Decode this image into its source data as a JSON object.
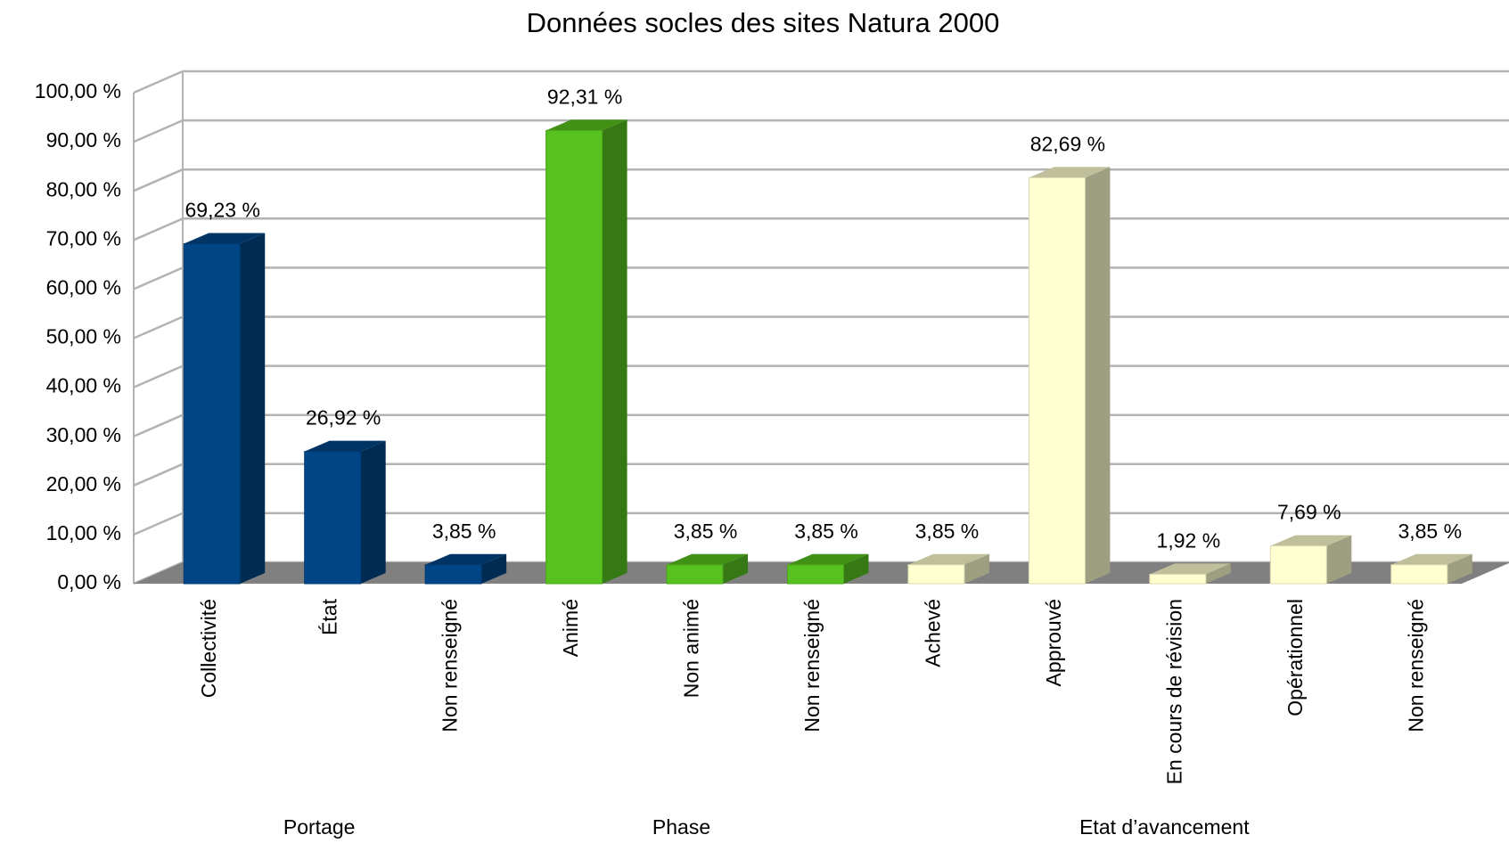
{
  "chart_data": {
    "type": "bar3d",
    "title": "Données socles des sites Natura 2000",
    "ylim": [
      0,
      100
    ],
    "yticks": [
      {
        "value": 0,
        "label": "0,00 %"
      },
      {
        "value": 10,
        "label": "10,00 %"
      },
      {
        "value": 20,
        "label": "20,00 %"
      },
      {
        "value": 30,
        "label": "30,00 %"
      },
      {
        "value": 40,
        "label": "40,00 %"
      },
      {
        "value": 50,
        "label": "50,00 %"
      },
      {
        "value": 60,
        "label": "60,00 %"
      },
      {
        "value": 70,
        "label": "70,00 %"
      },
      {
        "value": 80,
        "label": "80,00 %"
      },
      {
        "value": 90,
        "label": "90,00 %"
      },
      {
        "value": 100,
        "label": "100,00 %"
      }
    ],
    "grid": true,
    "groups": [
      {
        "label": "Portage",
        "color": "#004586",
        "categories": [
          "Collectivité",
          "État",
          "Non renseigné"
        ],
        "values": [
          69.23,
          26.92,
          3.85
        ],
        "value_labels": [
          "69,23 %",
          "26,92 %",
          "3,85 %"
        ]
      },
      {
        "label": "Phase",
        "color": "#57c11f",
        "categories": [
          "Animé",
          "Non animé",
          "Non renseigné"
        ],
        "values": [
          92.31,
          3.85,
          3.85
        ],
        "value_labels": [
          "92,31 %",
          "3,85 %",
          "3,85 %"
        ]
      },
      {
        "label": "Etat d’avancement",
        "color": "#ffffd0",
        "categories": [
          "Achevé",
          "Approuvé",
          "En cours de révision",
          "Opérationnel",
          "Non renseigné"
        ],
        "values": [
          3.85,
          82.69,
          1.92,
          7.69,
          3.85
        ],
        "value_labels": [
          "3,85 %",
          "82,69 %",
          "1,92 %",
          "7,69 %",
          "3,85 %"
        ]
      }
    ]
  }
}
